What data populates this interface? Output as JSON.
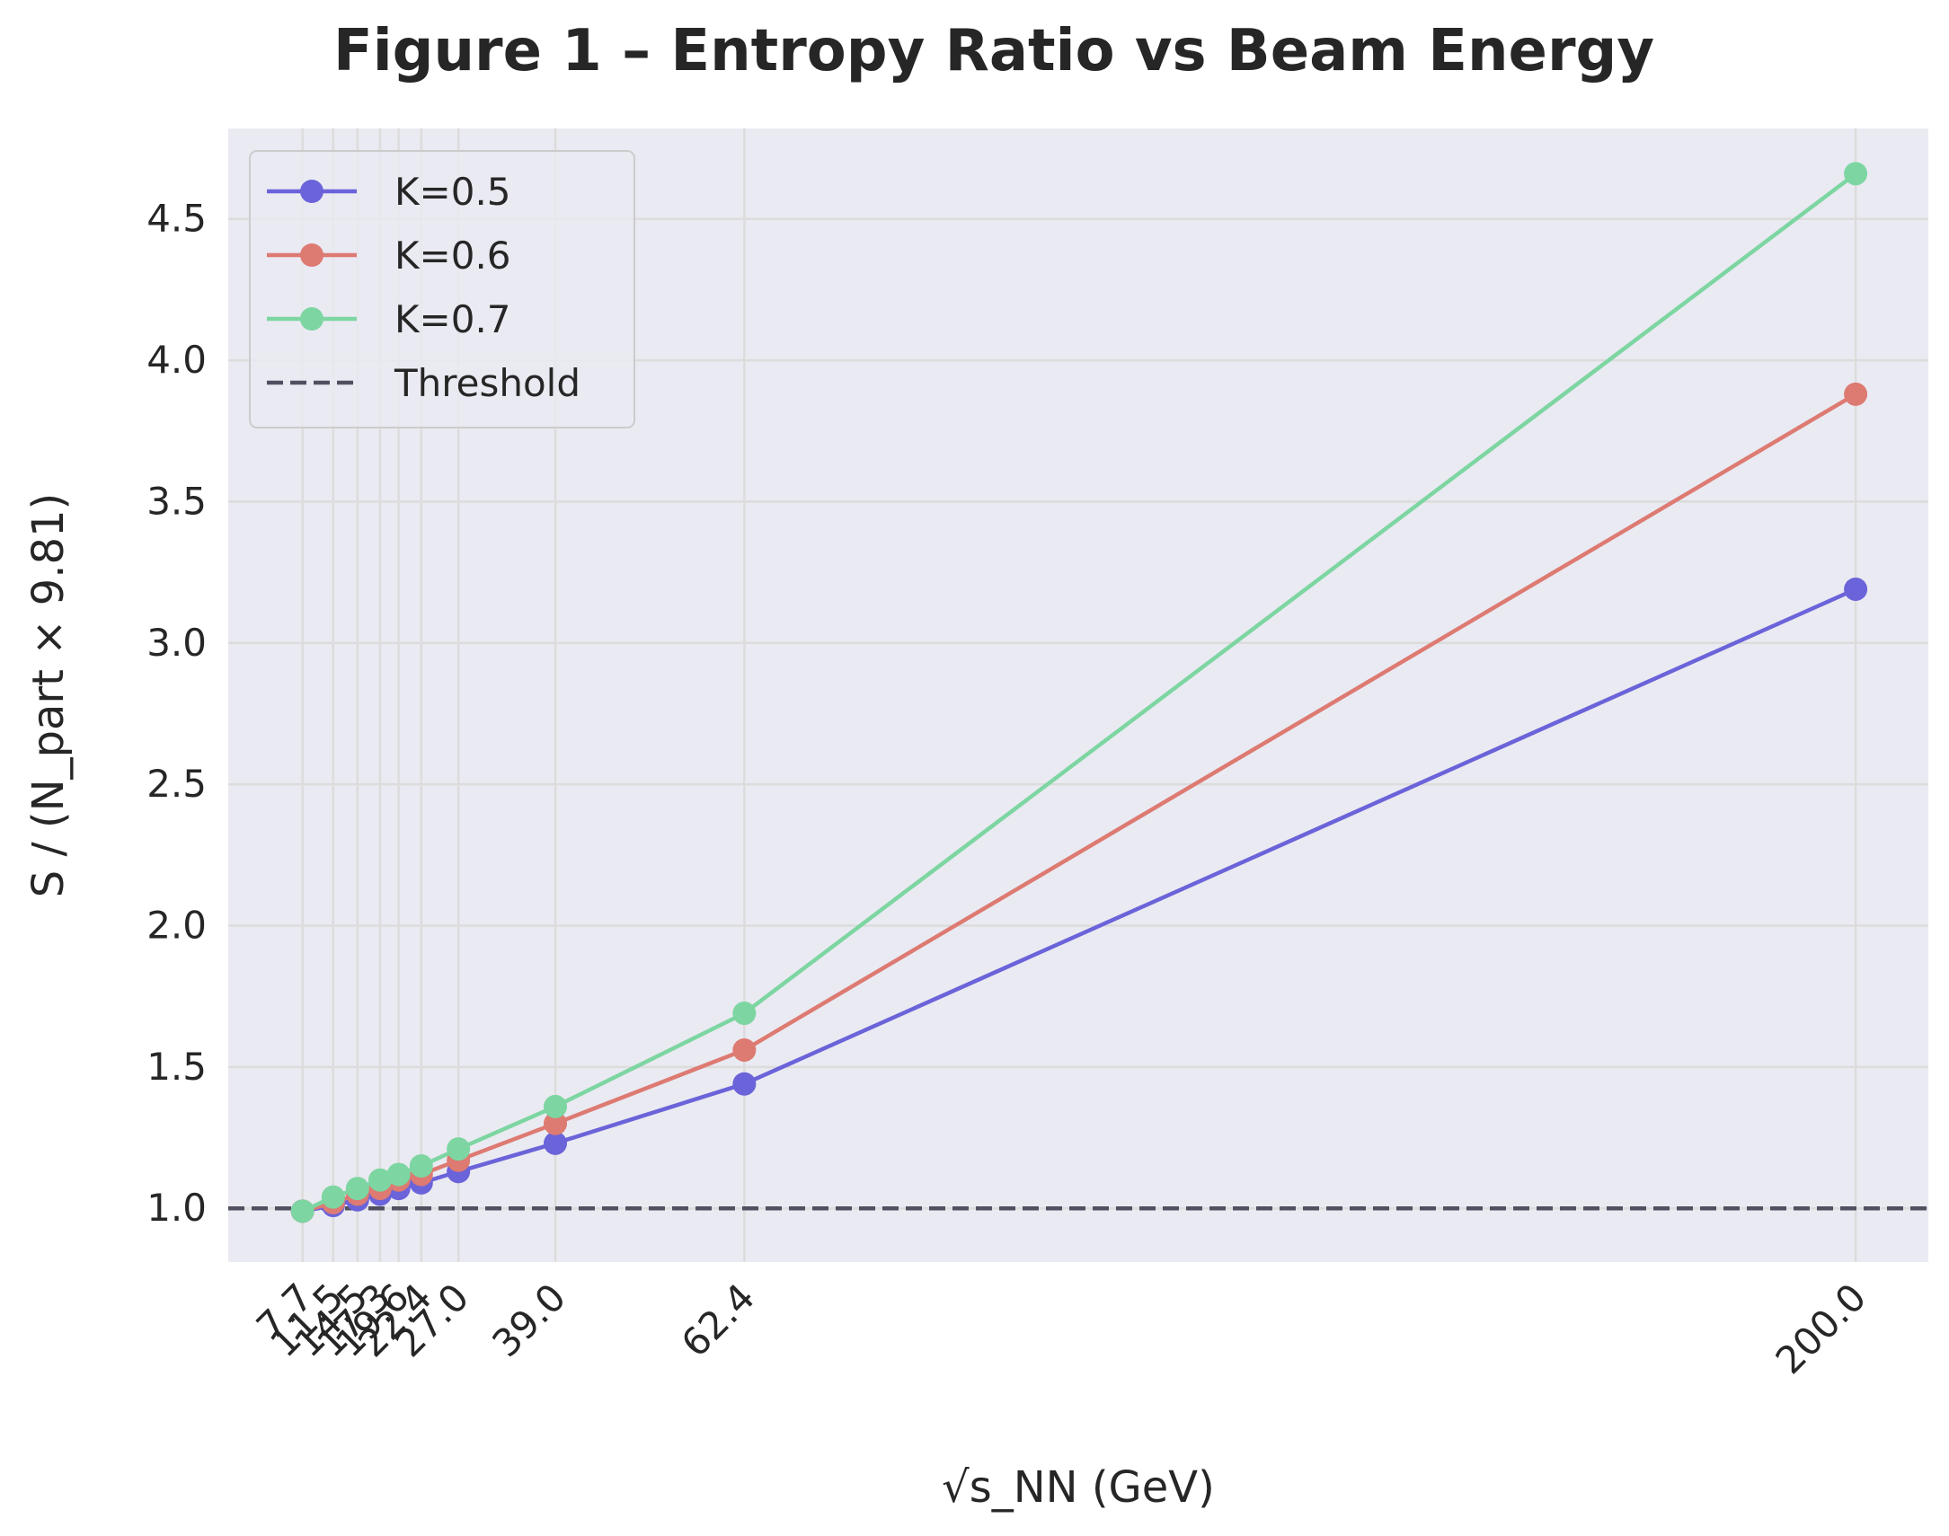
{
  "chart_data": {
    "type": "line",
    "title": "Figure 1 – Entropy Ratio vs Beam Energy",
    "xlabel": "√s_NN (GeV)",
    "ylabel": "S / (N_part × 9.81)",
    "x": [
      7.7,
      11.5,
      14.5,
      17.3,
      19.6,
      22.4,
      27.0,
      39.0,
      62.4,
      200.0
    ],
    "x_tick_labels": [
      "7.7",
      "11.5",
      "14.5",
      "17.3",
      "19.6",
      "22.4",
      "27.0",
      "39.0",
      "62.4",
      "200.0"
    ],
    "xlim": [
      -1.5,
      209.0
    ],
    "ylim": [
      0.81,
      4.82
    ],
    "y_ticks": [
      1.0,
      1.5,
      2.0,
      2.5,
      3.0,
      3.5,
      4.0,
      4.5
    ],
    "y_tick_labels": [
      "1.0",
      "1.5",
      "2.0",
      "2.5",
      "3.0",
      "3.5",
      "4.0",
      "4.5"
    ],
    "grid": true,
    "legend_position": "top-left",
    "series": [
      {
        "name": "K=0.5",
        "color": "#6b63d9",
        "values": [
          0.99,
          1.01,
          1.03,
          1.05,
          1.07,
          1.09,
          1.13,
          1.23,
          1.44,
          3.19
        ]
      },
      {
        "name": "K=0.6",
        "color": "#dd7a72",
        "values": [
          0.99,
          1.02,
          1.05,
          1.07,
          1.1,
          1.12,
          1.17,
          1.3,
          1.56,
          3.88
        ]
      },
      {
        "name": "K=0.7",
        "color": "#7dd6a2",
        "values": [
          0.99,
          1.04,
          1.07,
          1.1,
          1.12,
          1.15,
          1.21,
          1.36,
          1.69,
          4.66
        ]
      }
    ],
    "threshold": {
      "name": "Threshold",
      "value": 1.0,
      "color": "#4f5060",
      "style": "dashed"
    }
  }
}
